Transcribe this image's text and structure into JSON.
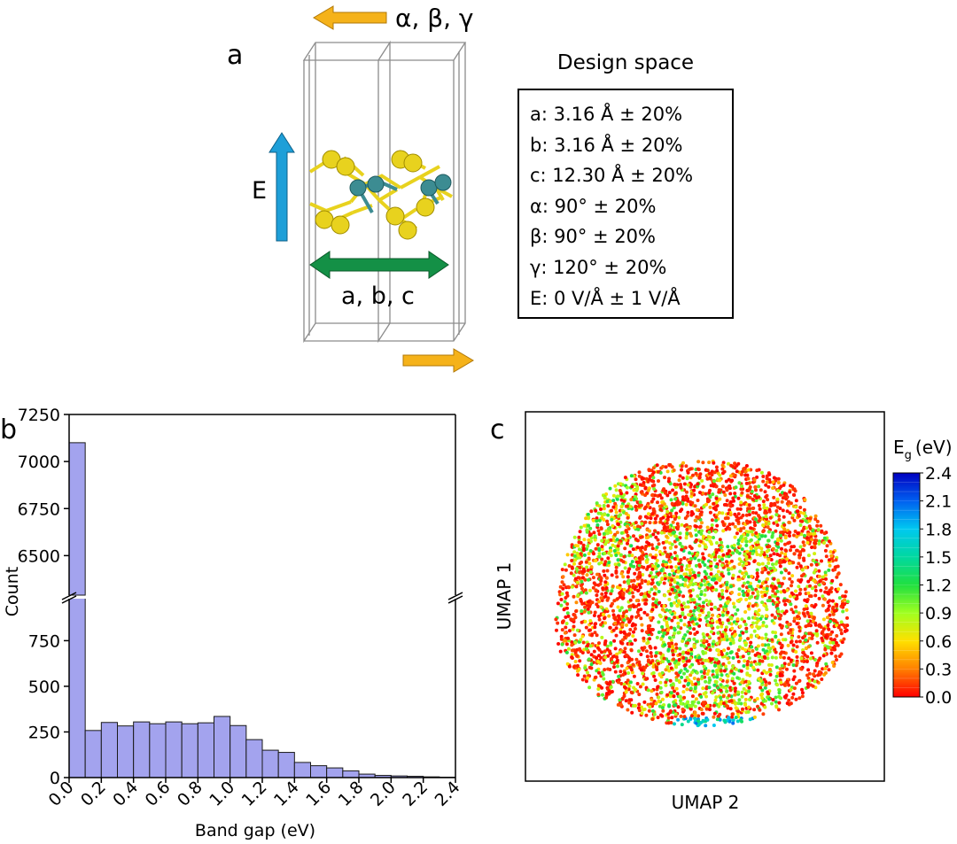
{
  "panels": {
    "a": {
      "label": "a",
      "angle_arrow_label": "α, β, γ",
      "field_label": "E",
      "lattice_label": "a, b, c",
      "colors": {
        "angle_arrow": "#f5b21a",
        "field_arrow": "#1e9fd8",
        "lattice_arrow": "#149046",
        "sulfur": "#e8d21e",
        "metal": "#3c8c92",
        "cell_lines": "#8c8c8c"
      }
    },
    "design_space": {
      "title": "Design space",
      "items": [
        "a: 3.16 Å ± 20%",
        "b: 3.16 Å ± 20%",
        "c: 12.30 Å ± 20%",
        "α: 90° ± 20%",
        "β: 90° ± 20%",
        "γ: 120° ± 20%",
        "E: 0 V/Å ± 1 V/Å"
      ]
    },
    "b": {
      "label": "b"
    },
    "c": {
      "label": "c"
    }
  },
  "chart_data": [
    {
      "type": "bar",
      "panel": "b",
      "xlabel": "Band gap (eV)",
      "ylabel": "Count",
      "bin_width": 0.1,
      "bin_starts": [
        0.0,
        0.1,
        0.2,
        0.3,
        0.4,
        0.5,
        0.6,
        0.7,
        0.8,
        0.9,
        1.0,
        1.1,
        1.2,
        1.3,
        1.4,
        1.5,
        1.6,
        1.7,
        1.8,
        1.9,
        2.0,
        2.1,
        2.2,
        2.3
      ],
      "values": [
        7100,
        258,
        302,
        283,
        305,
        295,
        305,
        295,
        300,
        335,
        285,
        208,
        150,
        138,
        83,
        65,
        53,
        37,
        19,
        12,
        9,
        7,
        4,
        2
      ],
      "xlim": [
        0,
        2.4
      ],
      "xticks": [
        "0.0",
        "0.2",
        "0.4",
        "0.6",
        "0.8",
        "1.0",
        "1.2",
        "1.4",
        "1.6",
        "1.8",
        "2.0",
        "2.2",
        "2.4"
      ],
      "broken_axis": {
        "lower_ylim": [
          0,
          980
        ],
        "upper_ylim": [
          6290,
          7250
        ],
        "lower_ticks": [
          "0",
          "250",
          "500",
          "750"
        ],
        "upper_ticks": [
          "6500",
          "6750",
          "7000",
          "7250"
        ]
      },
      "bar_color": "#a3a3ee",
      "bar_edge": "#1a1a1a",
      "grid": false
    },
    {
      "type": "scatter",
      "panel": "c",
      "xlabel": "UMAP 2",
      "ylabel": "UMAP 1",
      "colorbar": {
        "title": "E",
        "title_subscript": "g",
        "title_unit": "(eV)",
        "range": [
          0,
          2.4
        ],
        "ticks": [
          "0.0",
          "0.3",
          "0.6",
          "0.9",
          "1.2",
          "1.5",
          "1.8",
          "2.1",
          "2.4"
        ],
        "colormap": [
          "#ff0000",
          "#ff8000",
          "#ffe000",
          "#a0ff20",
          "#20e040",
          "#00d8a0",
          "#00c8f0",
          "#0060f0",
          "#0000c0"
        ]
      },
      "points_approx_count": 9000,
      "region": "roughly circular cloud; mostly red (near 0 eV) with yellow/green clusters in the left and center, cyan/blue points at the bottom edge",
      "grid": false
    }
  ]
}
